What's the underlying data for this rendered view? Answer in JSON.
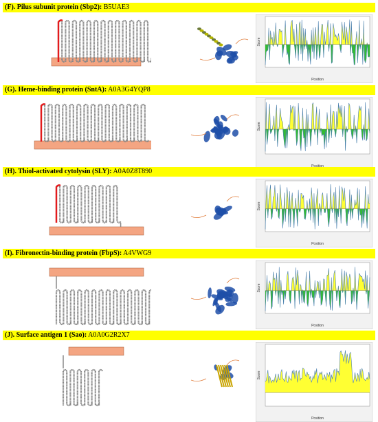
{
  "colors": {
    "banner": "#ffff00",
    "membrane": "#f4a582",
    "helix_coil": "#888888",
    "signal_peptide": "#e31a1c",
    "plot_above": "#ffff33",
    "plot_below": "#33bb33",
    "plot_line": "#4a7fb0",
    "structure_blue": "#1f4fa8"
  },
  "sections": [
    {
      "label_bold": "(F). Pilus subunit protein (Sbp2):",
      "accession": "B5UAE3",
      "plot": {
        "ylabel": "Score",
        "xlabel": "Position"
      }
    },
    {
      "label_bold": "(G). Heme-binding protein (SntA):",
      "accession": "A0A3G4YQP8",
      "plot": {
        "ylabel": "Score",
        "xlabel": "Position"
      }
    },
    {
      "label_bold": "(H). Thiol-activated cytolysin (SLY):",
      "accession": "A0A0Z8T890",
      "plot": {
        "ylabel": "Score",
        "xlabel": "Position"
      }
    },
    {
      "label_bold": "(I). Fibronectin-binding protein (FbpS):",
      "accession": "A4VWG9",
      "plot": {
        "ylabel": "Score",
        "xlabel": "Position"
      }
    },
    {
      "label_bold": "(J). Surface antigen 1 (Sao):",
      "accession": "A0A0G2R2X7",
      "plot": {
        "ylabel": "Score",
        "xlabel": "Position"
      }
    }
  ]
}
